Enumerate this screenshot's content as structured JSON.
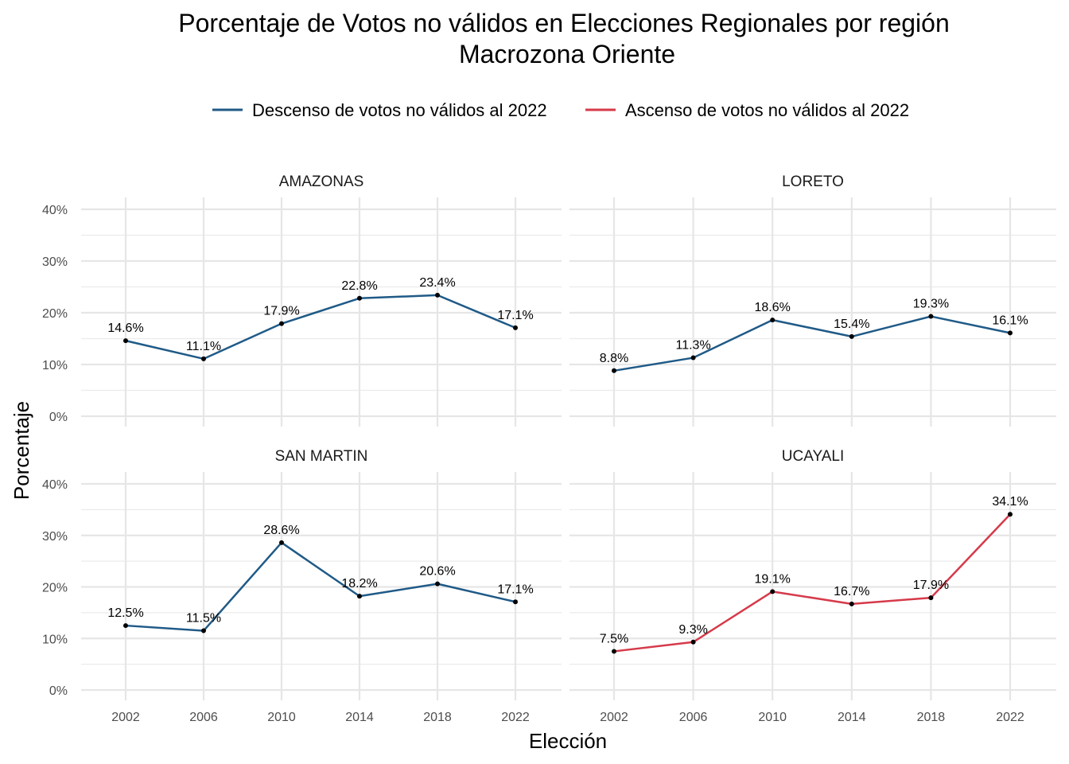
{
  "chart_data": {
    "type": "line",
    "title": "Porcentaje de Votos no válidos en Elecciones Regionales por región",
    "subtitle": "Macrozona Oriente",
    "xlabel": "Elección",
    "ylabel": "Porcentaje",
    "x": [
      2002,
      2006,
      2010,
      2014,
      2018,
      2022
    ],
    "ylim": [
      0,
      40
    ],
    "yticks": [
      "0%",
      "10%",
      "20%",
      "30%",
      "40%"
    ],
    "grid": true,
    "legend": {
      "position": "top",
      "entries": [
        {
          "name": "Descenso de votos no válidos al 2022",
          "color": "#1f5a87"
        },
        {
          "name": "Ascenso de votos no válidos al 2022",
          "color": "#d63a4a"
        }
      ]
    },
    "series": [
      {
        "name": "AMAZONAS",
        "group": 0,
        "values": [
          14.6,
          11.1,
          17.9,
          22.8,
          23.4,
          17.1
        ],
        "labels": [
          "14.6%",
          "11.1%",
          "17.9%",
          "22.8%",
          "23.4%",
          "17.1%"
        ]
      },
      {
        "name": "LORETO",
        "group": 0,
        "values": [
          8.8,
          11.3,
          18.6,
          15.4,
          19.3,
          16.1
        ],
        "labels": [
          "8.8%",
          "11.3%",
          "18.6%",
          "15.4%",
          "19.3%",
          "16.1%"
        ]
      },
      {
        "name": "SAN MARTIN",
        "group": 0,
        "values": [
          12.5,
          11.5,
          28.6,
          18.2,
          20.6,
          17.1
        ],
        "labels": [
          "12.5%",
          "11.5%",
          "28.6%",
          "18.2%",
          "20.6%",
          "17.1%"
        ]
      },
      {
        "name": "UCAYALI",
        "group": 1,
        "values": [
          7.5,
          9.3,
          19.1,
          16.7,
          17.9,
          34.1
        ],
        "labels": [
          "7.5%",
          "9.3%",
          "19.1%",
          "16.7%",
          "17.9%",
          "34.1%"
        ]
      }
    ]
  }
}
